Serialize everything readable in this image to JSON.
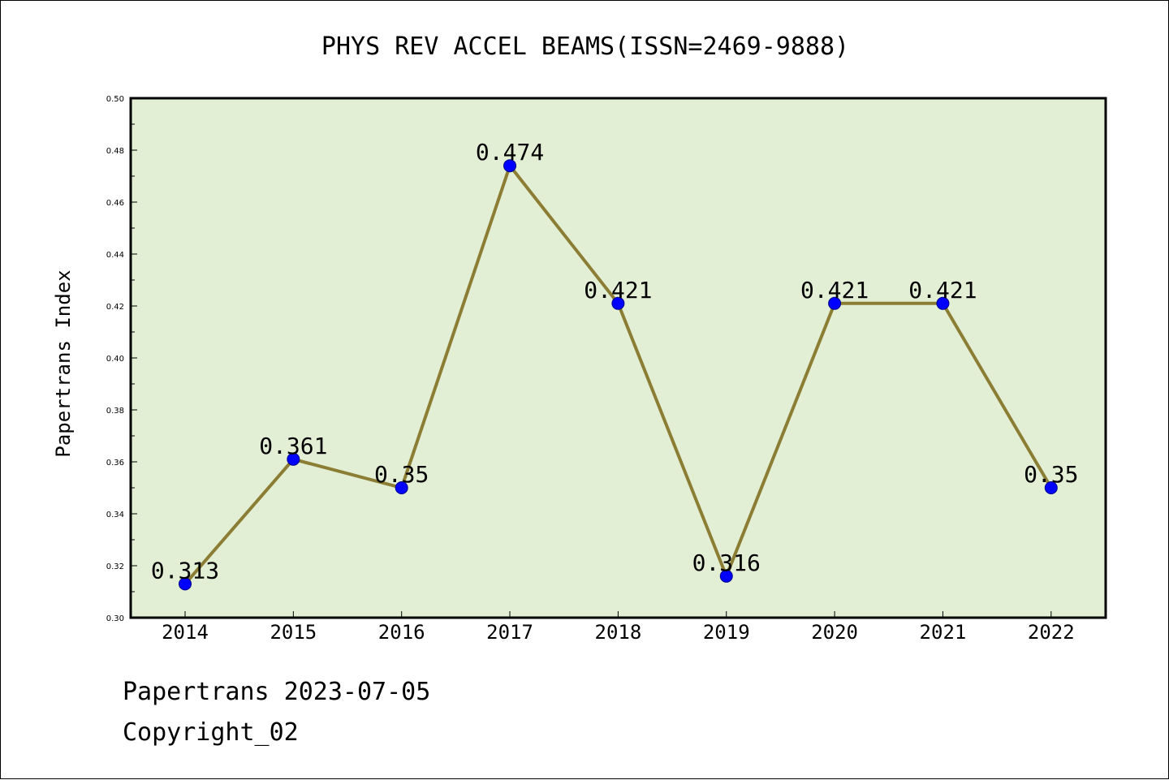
{
  "chart_data": {
    "type": "line",
    "title": "PHYS REV ACCEL BEAMS(ISSN=2469-9888)",
    "xlabel": "",
    "ylabel": "Papertrans Index",
    "categories": [
      "2014",
      "2015",
      "2016",
      "2017",
      "2018",
      "2019",
      "2020",
      "2021",
      "2022"
    ],
    "series": [
      {
        "name": "Papertrans Index",
        "values": [
          0.313,
          0.361,
          0.35,
          0.474,
          0.421,
          0.316,
          0.421,
          0.421,
          0.35
        ],
        "labels": [
          "0.313",
          "0.361",
          "0.35",
          "0.474",
          "0.421",
          "0.316",
          "0.421",
          "0.421",
          "0.35"
        ]
      }
    ],
    "ylim": [
      0.3,
      0.5
    ],
    "yticks": [
      "0.30",
      "0.32",
      "0.34",
      "0.36",
      "0.38",
      "0.40",
      "0.42",
      "0.44",
      "0.46",
      "0.48",
      "0.50"
    ],
    "grid": false,
    "legend": "none"
  },
  "footer": {
    "date_line": "Papertrans 2023-07-05",
    "copyright_line": "Copyright_02"
  },
  "colors": {
    "plot_background": "#e2efd5",
    "line": "#8b7d33",
    "marker": "#0000ff",
    "axis": "#000000"
  }
}
